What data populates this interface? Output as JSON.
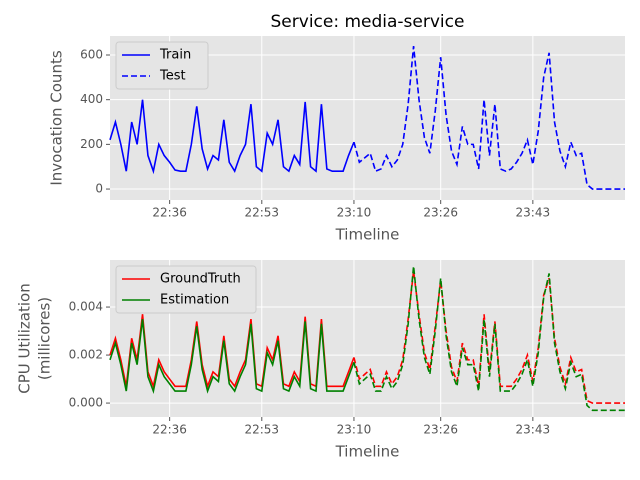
{
  "chart_data": [
    {
      "type": "line",
      "title": "Service: media-service",
      "x_label": "Timeline",
      "y_label": "Invocation Counts",
      "legend": "upper left",
      "grid": true,
      "x": [
        "22:25",
        "22:26",
        "22:27",
        "22:28",
        "22:29",
        "22:30",
        "22:31",
        "22:32",
        "22:33",
        "22:34",
        "22:35",
        "22:36",
        "22:37",
        "22:38",
        "22:39",
        "22:40",
        "22:41",
        "22:42",
        "22:43",
        "22:44",
        "22:45",
        "22:46",
        "22:47",
        "22:48",
        "22:49",
        "22:50",
        "22:51",
        "22:52",
        "22:53",
        "22:54",
        "22:55",
        "22:56",
        "22:57",
        "22:58",
        "22:59",
        "23:00",
        "23:01",
        "23:02",
        "23:03",
        "23:04",
        "23:05",
        "23:06",
        "23:07",
        "23:08",
        "23:09",
        "23:10",
        "23:11",
        "23:12",
        "23:13",
        "23:14",
        "23:15",
        "23:16",
        "23:17",
        "23:18",
        "23:19",
        "23:20",
        "23:21",
        "23:22",
        "23:23",
        "23:24",
        "23:25",
        "23:26",
        "23:27",
        "23:28",
        "23:29",
        "23:30",
        "23:31",
        "23:32",
        "23:33",
        "23:34",
        "23:35",
        "23:36",
        "23:37",
        "23:38",
        "23:39",
        "23:40",
        "23:41",
        "23:42",
        "23:43",
        "23:44",
        "23:45",
        "23:46",
        "23:47",
        "23:48",
        "23:49",
        "23:50",
        "23:51",
        "23:52",
        "23:53",
        "23:54",
        "23:55",
        "23:56",
        "23:57",
        "23:58",
        "23:59",
        "00:00"
      ],
      "xlim": [
        "22:25",
        "00:00"
      ],
      "xticks": [
        "22:36",
        "22:53",
        "23:10",
        "23:26",
        "23:43"
      ],
      "ylim": [
        -49,
        685
      ],
      "yticks": [
        0,
        200,
        400,
        600
      ],
      "series": [
        {
          "name": "Train",
          "color": "#0000ff",
          "dashed": false,
          "values": [
            220,
            300,
            200,
            80,
            300,
            200,
            400,
            150,
            80,
            200,
            150,
            120,
            85,
            80,
            80,
            200,
            370,
            180,
            90,
            150,
            130,
            310,
            120,
            80,
            150,
            200,
            380,
            100,
            80,
            250,
            200,
            310,
            100,
            80,
            150,
            110,
            390,
            100,
            80,
            380,
            90,
            80,
            80,
            80,
            150,
            210,
            null,
            null,
            null,
            null,
            null,
            null,
            null,
            null,
            null,
            null,
            null,
            null,
            null,
            null,
            null,
            null,
            null,
            null,
            null,
            null,
            null,
            null,
            null,
            null,
            null,
            null,
            null,
            null,
            null,
            null,
            null,
            null,
            null,
            null,
            null,
            null,
            null,
            null,
            null,
            null,
            null,
            null,
            null,
            null,
            null,
            null,
            null,
            null,
            null,
            null
          ]
        },
        {
          "name": "Test",
          "color": "#0000ff",
          "dashed": true,
          "values": [
            null,
            null,
            null,
            null,
            null,
            null,
            null,
            null,
            null,
            null,
            null,
            null,
            null,
            null,
            null,
            null,
            null,
            null,
            null,
            null,
            null,
            null,
            null,
            null,
            null,
            null,
            null,
            null,
            null,
            null,
            null,
            null,
            null,
            null,
            null,
            null,
            null,
            null,
            null,
            null,
            null,
            null,
            null,
            null,
            null,
            210,
            120,
            140,
            160,
            80,
            90,
            150,
            100,
            130,
            200,
            380,
            640,
            400,
            230,
            160,
            350,
            590,
            330,
            170,
            110,
            280,
            200,
            200,
            90,
            400,
            150,
            380,
            90,
            80,
            90,
            120,
            160,
            220,
            110,
            260,
            500,
            610,
            300,
            170,
            100,
            210,
            150,
            160,
            20,
            0,
            0,
            0,
            0,
            0,
            0,
            0
          ]
        }
      ]
    },
    {
      "type": "line",
      "x_label": "Timeline",
      "y_label": [
        "CPU Utilization",
        "(millicores)"
      ],
      "legend": "upper left",
      "grid": true,
      "x": [
        "22:25",
        "22:26",
        "22:27",
        "22:28",
        "22:29",
        "22:30",
        "22:31",
        "22:32",
        "22:33",
        "22:34",
        "22:35",
        "22:36",
        "22:37",
        "22:38",
        "22:39",
        "22:40",
        "22:41",
        "22:42",
        "22:43",
        "22:44",
        "22:45",
        "22:46",
        "22:47",
        "22:48",
        "22:49",
        "22:50",
        "22:51",
        "22:52",
        "22:53",
        "22:54",
        "22:55",
        "22:56",
        "22:57",
        "22:58",
        "22:59",
        "23:00",
        "23:01",
        "23:02",
        "23:03",
        "23:04",
        "23:05",
        "23:06",
        "23:07",
        "23:08",
        "23:09",
        "23:10",
        "23:11",
        "23:12",
        "23:13",
        "23:14",
        "23:15",
        "23:16",
        "23:17",
        "23:18",
        "23:19",
        "23:20",
        "23:21",
        "23:22",
        "23:23",
        "23:24",
        "23:25",
        "23:26",
        "23:27",
        "23:28",
        "23:29",
        "23:30",
        "23:31",
        "23:32",
        "23:33",
        "23:34",
        "23:35",
        "23:36",
        "23:37",
        "23:38",
        "23:39",
        "23:40",
        "23:41",
        "23:42",
        "23:43",
        "23:44",
        "23:45",
        "23:46",
        "23:47",
        "23:48",
        "23:49",
        "23:50",
        "23:51",
        "23:52",
        "23:53",
        "23:54",
        "23:55",
        "23:56",
        "23:57",
        "23:58",
        "23:59",
        "00:00"
      ],
      "xlim": [
        "22:25",
        "00:00"
      ],
      "xticks": [
        "22:36",
        "22:53",
        "23:10",
        "23:26",
        "23:43"
      ],
      "ylim": [
        -0.00058,
        0.00596
      ],
      "yticks": [
        {
          "value": 0,
          "label": "0.000"
        },
        {
          "value": 0.002,
          "label": "0.002"
        },
        {
          "value": 0.004,
          "label": "0.004"
        }
      ],
      "series": [
        {
          "name": "GroundTruth",
          "color": "#ff0000",
          "dashed": false,
          "values": [
            0.002,
            0.0027,
            0.0018,
            0.0007,
            0.0027,
            0.0018,
            0.0037,
            0.0013,
            0.0007,
            0.0018,
            0.0013,
            0.001,
            0.0007,
            0.0007,
            0.0007,
            0.0018,
            0.0034,
            0.0016,
            0.0007,
            0.0013,
            0.0011,
            0.0028,
            0.001,
            0.0007,
            0.0013,
            0.0018,
            0.0035,
            0.0008,
            0.0007,
            0.0023,
            0.0018,
            0.0028,
            0.0008,
            0.0007,
            0.0013,
            0.0009,
            0.0036,
            0.0008,
            0.0007,
            0.0035,
            0.0007,
            0.0007,
            0.0007,
            0.0007,
            0.0013,
            0.0019,
            null,
            null,
            null,
            null,
            null,
            null,
            null,
            null,
            null,
            null,
            null,
            null,
            null,
            null,
            null,
            null,
            null,
            null,
            null,
            null,
            null,
            null,
            null,
            null,
            null,
            null,
            null,
            null,
            null,
            null,
            null,
            null,
            null,
            null,
            null,
            null,
            null,
            null,
            null,
            null,
            null,
            null,
            null,
            null,
            null,
            null,
            null,
            null,
            null,
            null
          ]
        },
        {
          "name": "Estimation",
          "color": "#008000",
          "dashed": false,
          "values": [
            0.0018,
            0.0025,
            0.0016,
            0.0005,
            0.0025,
            0.0016,
            0.0035,
            0.0011,
            0.0005,
            0.0016,
            0.0011,
            0.0008,
            0.0005,
            0.0005,
            0.0005,
            0.0016,
            0.0032,
            0.0014,
            0.0005,
            0.0011,
            0.0009,
            0.0026,
            0.0008,
            0.0005,
            0.0011,
            0.0016,
            0.0033,
            0.0006,
            0.0005,
            0.0021,
            0.0016,
            0.0026,
            0.0006,
            0.0005,
            0.0011,
            0.0007,
            0.0034,
            0.0006,
            0.0005,
            0.0033,
            0.0005,
            0.0005,
            0.0005,
            0.0005,
            0.0011,
            0.0017,
            null,
            null,
            null,
            null,
            null,
            null,
            null,
            null,
            null,
            null,
            null,
            null,
            null,
            null,
            null,
            null,
            null,
            null,
            null,
            null,
            null,
            null,
            null,
            null,
            null,
            null,
            null,
            null,
            null,
            null,
            null,
            null,
            null,
            null,
            null,
            null,
            null,
            null,
            null,
            null,
            null,
            null,
            null,
            null,
            null,
            null,
            null,
            null,
            null,
            null
          ]
        },
        {
          "color": "#ff0000",
          "dashed": true,
          "values": [
            null,
            null,
            null,
            null,
            null,
            null,
            null,
            null,
            null,
            null,
            null,
            null,
            null,
            null,
            null,
            null,
            null,
            null,
            null,
            null,
            null,
            null,
            null,
            null,
            null,
            null,
            null,
            null,
            null,
            null,
            null,
            null,
            null,
            null,
            null,
            null,
            null,
            null,
            null,
            null,
            null,
            null,
            null,
            null,
            null,
            0.0019,
            0.001,
            0.0012,
            0.0014,
            0.0007,
            0.0007,
            0.0013,
            0.0008,
            0.0011,
            0.0018,
            0.0035,
            0.0055,
            0.0037,
            0.0021,
            0.0014,
            0.0032,
            0.0051,
            0.003,
            0.0015,
            0.0009,
            0.0025,
            0.0018,
            0.0018,
            0.0007,
            0.0037,
            0.0013,
            0.0034,
            0.0007,
            0.0007,
            0.0007,
            0.001,
            0.0014,
            0.002,
            0.0009,
            0.0023,
            0.0045,
            0.0052,
            0.0027,
            0.0015,
            0.0008,
            0.0019,
            0.0013,
            0.0014,
            0.0001,
            0,
            0,
            0,
            0,
            0,
            0,
            0
          ]
        },
        {
          "color": "#008000",
          "dashed": true,
          "values": [
            null,
            null,
            null,
            null,
            null,
            null,
            null,
            null,
            null,
            null,
            null,
            null,
            null,
            null,
            null,
            null,
            null,
            null,
            null,
            null,
            null,
            null,
            null,
            null,
            null,
            null,
            null,
            null,
            null,
            null,
            null,
            null,
            null,
            null,
            null,
            null,
            null,
            null,
            null,
            null,
            null,
            null,
            null,
            null,
            null,
            0.0017,
            0.0008,
            0.001,
            0.0012,
            0.0005,
            0.0005,
            0.0011,
            0.0006,
            0.0009,
            0.0016,
            0.0033,
            0.0057,
            0.0035,
            0.0019,
            0.0012,
            0.003,
            0.0052,
            0.0028,
            0.0013,
            0.0007,
            0.0023,
            0.0016,
            0.0016,
            0.0005,
            0.0035,
            0.0011,
            0.0033,
            0.0005,
            0.0005,
            0.0005,
            0.0008,
            0.0012,
            0.0018,
            0.0007,
            0.0021,
            0.0044,
            0.0054,
            0.0025,
            0.0013,
            0.0006,
            0.0017,
            0.0011,
            0.0012,
            -0.0001,
            -0.0003,
            -0.0003,
            -0.0003,
            -0.0003,
            -0.0003,
            -0.0003,
            -0.0003
          ]
        }
      ]
    }
  ]
}
